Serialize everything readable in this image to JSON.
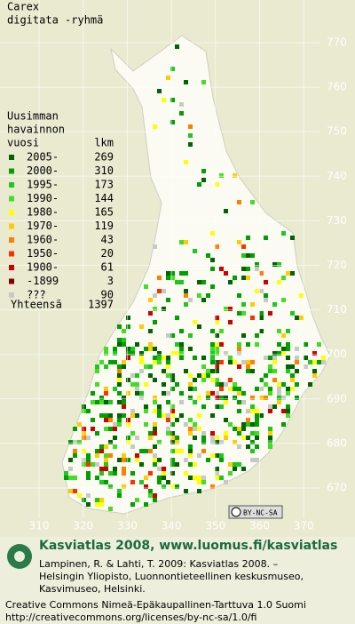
{
  "title": [
    "Carex",
    "digitata -ryhmä"
  ],
  "legend": {
    "heading": [
      "Uusimman",
      "havainnon",
      "vuosi"
    ],
    "count_heading": "lkm",
    "entries": [
      {
        "label": "2005-",
        "count": 269,
        "color": "#006400"
      },
      {
        "label": "2000-",
        "count": 310,
        "color": "#00a000"
      },
      {
        "label": "1995-",
        "count": 173,
        "color": "#1ec81e"
      },
      {
        "label": "1990-",
        "count": 144,
        "color": "#44dd22"
      },
      {
        "label": "1980-",
        "count": 165,
        "color": "#ffff00"
      },
      {
        "label": "1970-",
        "count": 119,
        "color": "#ffcc00"
      },
      {
        "label": "1960-",
        "count": 43,
        "color": "#ff8000"
      },
      {
        "label": "1950-",
        "count": 20,
        "color": "#ff3000"
      },
      {
        "label": "1900-",
        "count": 61,
        "color": "#d00000"
      },
      {
        "label": "-1899",
        "count": 3,
        "color": "#800000"
      },
      {
        "label": "???",
        "count": 90,
        "color": "#c8c8c8"
      }
    ],
    "total": {
      "label": "Yhteensä",
      "count": 1397
    }
  },
  "grid": {
    "y_labels": [
      770,
      760,
      750,
      740,
      730,
      720,
      710,
      700,
      690,
      680,
      670
    ],
    "x_labels": [
      310,
      320,
      330,
      340,
      350,
      360,
      370
    ]
  },
  "badge": "BY-NC-SA",
  "footer": {
    "headline": "Kasviatlas 2008, www.luomus.fi/kasviatlas",
    "citation": [
      "Lampinen, R. & Lahti, T. 2009: Kasviatlas 2008. –",
      "Helsingin Yliopisto, Luonnontieteellinen keskusmuseo,",
      "Kasvimuseo, Helsinki."
    ],
    "license": [
      "Creative Commons Nimeä-Epäkaupallinen-Tarttuva 1.0 Suomi",
      "http://creativecommons.org/licenses/by-nc-sa/1.0/fi"
    ]
  }
}
